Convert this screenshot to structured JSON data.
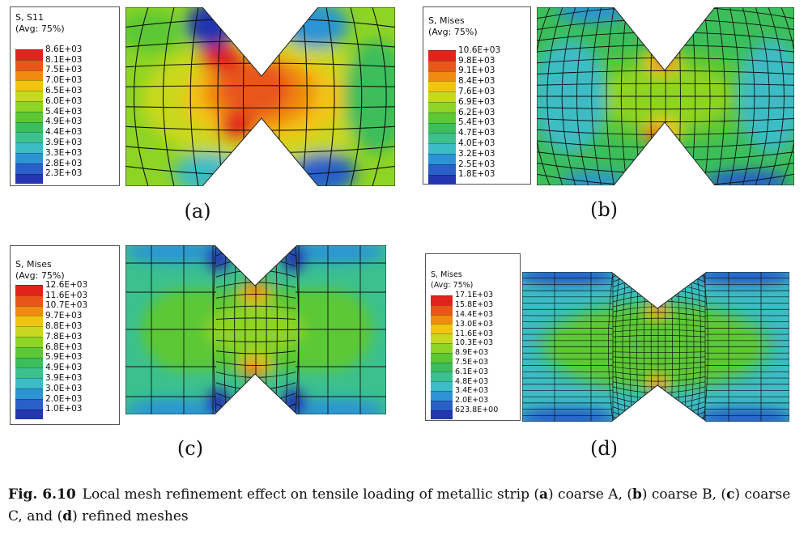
{
  "panels": [
    {
      "id": "a",
      "label": "(a)",
      "legend": {
        "variable": "S, S11",
        "average": "(Avg: 75%)",
        "values": [
          "8.6E+03",
          "8.1E+03",
          "7.5E+03",
          "7.0E+03",
          "6.5E+03",
          "6.0E+03",
          "5.4E+03",
          "4.9E+03",
          "4.4E+03",
          "3.9E+03",
          "3.3E+03",
          "2.8E+03",
          "2.3E+03"
        ]
      }
    },
    {
      "id": "b",
      "label": "(b)",
      "legend": {
        "variable": "S, Mises",
        "average": "(Avg: 75%)",
        "values": [
          "10.6E+03",
          "9.8E+03",
          "9.1E+03",
          "8.4E+03",
          "7.6E+03",
          "6.9E+03",
          "6.2E+03",
          "5.4E+03",
          "4.7E+03",
          "4.0E+03",
          "3.2E+03",
          "2.5E+03",
          "1.8E+03"
        ]
      }
    },
    {
      "id": "c",
      "label": "(c)",
      "legend": {
        "variable": "S, Mises",
        "average": "(Avg: 75%)",
        "values": [
          "12.6E+03",
          "11.6E+03",
          "10.7E+03",
          "9.7E+03",
          "8.8E+03",
          "7.8E+03",
          "6.8E+03",
          "5.9E+03",
          "4.9E+03",
          "3.9E+03",
          "3.0E+03",
          "2.0E+03",
          "1.0E+03"
        ]
      }
    },
    {
      "id": "d",
      "label": "(d)",
      "legend": {
        "variable": "S, Mises",
        "average": "(Avg: 75%)",
        "values": [
          "17.1E+03",
          "15.8E+03",
          "14.4E+03",
          "13.0E+03",
          "11.6E+03",
          "10.3E+03",
          "8.9E+03",
          "7.5E+03",
          "6.1E+03",
          "4.8E+03",
          "3.4E+03",
          "2.0E+03",
          "623.8E+00"
        ]
      }
    }
  ],
  "legend_colors": [
    "#e0241c",
    "#e8561a",
    "#f08a10",
    "#f2c412",
    "#c8d81e",
    "#8ed424",
    "#5cc834",
    "#3cbe5a",
    "#3cc08e",
    "#3cbcc4",
    "#2c94d4",
    "#2860c8",
    "#2436b0"
  ],
  "caption": {
    "fig_label": "Fig. 6.10",
    "text_1": "Local mesh refinement effect on tensile loading of metallic strip (",
    "a": "a",
    "text_2": ") coarse A, (",
    "b": "b",
    "text_3": ") coarse B, (",
    "c": "c",
    "text_4": ") coarse C, and (",
    "d": "d",
    "text_5": ") refined meshes"
  }
}
